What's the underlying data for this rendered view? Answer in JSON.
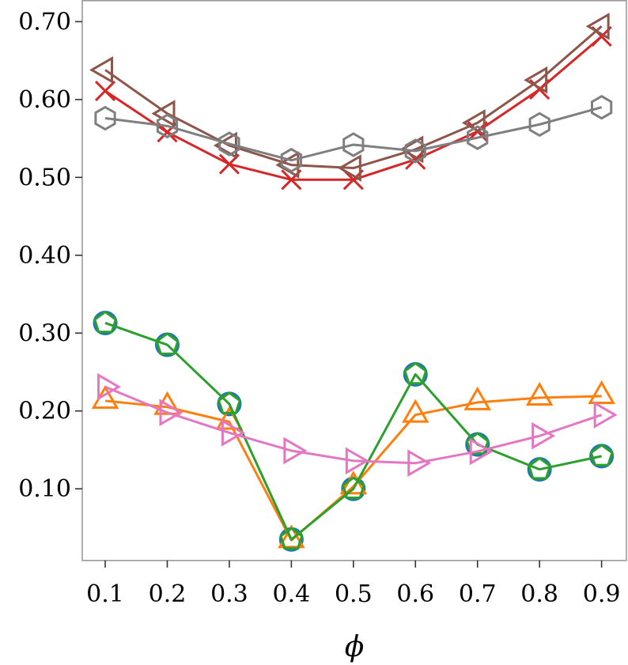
{
  "chart_data": {
    "type": "line",
    "title": "",
    "xlabel": "ϕ",
    "ylabel": "",
    "x": [
      0.1,
      0.2,
      0.3,
      0.4,
      0.5,
      0.6,
      0.7,
      0.8,
      0.9
    ],
    "x_tick_labels": [
      "0.1",
      "0.2",
      "0.3",
      "0.4",
      "0.5",
      "0.6",
      "0.7",
      "0.8",
      "0.9"
    ],
    "y_ticks": [
      0.1,
      0.2,
      0.3,
      0.4,
      0.5,
      0.6,
      0.7
    ],
    "y_tick_labels": [
      "0.10",
      "0.20",
      "0.30",
      "0.40",
      "0.50",
      "0.60",
      "0.70"
    ],
    "xlim": [
      0.063,
      0.94
    ],
    "ylim": [
      0.008,
      0.727
    ],
    "grid": false,
    "legend": "none",
    "series": [
      {
        "name": "blue-circle",
        "color": "#1f77b4",
        "marker": "circle",
        "line": false,
        "values": [
          0.313,
          0.285,
          0.209,
          0.035,
          0.1,
          0.247,
          0.157,
          0.125,
          0.142
        ]
      },
      {
        "name": "orange-triangle-up",
        "color": "#ff7f0e",
        "marker": "triangle-up",
        "line": true,
        "values": [
          0.213,
          0.205,
          0.186,
          0.034,
          0.103,
          0.195,
          0.211,
          0.217,
          0.219
        ]
      },
      {
        "name": "green-pentagon",
        "color": "#2ca02c",
        "marker": "pentagon",
        "line": true,
        "values": [
          0.313,
          0.285,
          0.209,
          0.035,
          0.1,
          0.247,
          0.157,
          0.125,
          0.142
        ]
      },
      {
        "name": "red-x",
        "color": "#d62728",
        "marker": "x",
        "line": true,
        "values": [
          0.611,
          0.558,
          0.517,
          0.497,
          0.497,
          0.523,
          0.559,
          0.613,
          0.681
        ]
      },
      {
        "name": "brown-triangle-left",
        "color": "#8c564b",
        "marker": "triangle-left",
        "line": true,
        "values": [
          0.638,
          0.582,
          0.541,
          0.516,
          0.512,
          0.536,
          0.57,
          0.625,
          0.694
        ]
      },
      {
        "name": "pink-triangle-right",
        "color": "#e377c2",
        "marker": "triangle-right",
        "line": true,
        "values": [
          0.231,
          0.198,
          0.172,
          0.149,
          0.136,
          0.133,
          0.148,
          0.168,
          0.195
        ]
      },
      {
        "name": "gray-hexagon",
        "color": "#7f7f7f",
        "marker": "hexagon",
        "line": true,
        "values": [
          0.576,
          0.566,
          0.543,
          0.522,
          0.542,
          0.534,
          0.551,
          0.568,
          0.59
        ]
      }
    ]
  }
}
